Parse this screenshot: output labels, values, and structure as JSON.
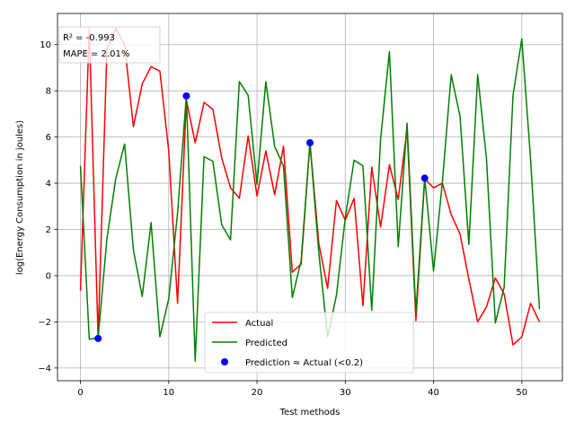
{
  "chart_data": {
    "type": "line",
    "title": "",
    "xlabel": "Test methods",
    "ylabel": "log(Energy Consumption in joules)",
    "xlim": [
      -2.6,
      54.6
    ],
    "ylim": [
      -4.55,
      11.35
    ],
    "x_ticks": [
      0,
      10,
      20,
      30,
      40,
      50
    ],
    "y_ticks": [
      -4,
      -2,
      0,
      2,
      4,
      6,
      8,
      10
    ],
    "grid": true,
    "legend_position": "bottom-center",
    "annotation": {
      "line1": "R² = -0.993",
      "line2": "MAPE = 2.01%"
    },
    "series": [
      {
        "name": "Actual",
        "color": "#ff0000",
        "values": [
          -0.65,
          10.7,
          -2.7,
          9.8,
          10.7,
          10.0,
          6.45,
          8.3,
          9.05,
          8.85,
          5.4,
          -1.2,
          7.6,
          5.75,
          7.5,
          7.2,
          5.1,
          3.8,
          3.35,
          6.05,
          3.45,
          5.4,
          3.5,
          5.6,
          0.15,
          0.5,
          5.75,
          1.4,
          -0.55,
          3.25,
          2.4,
          3.35,
          -1.3,
          4.7,
          2.1,
          4.8,
          3.3,
          6.35,
          -1.95,
          4.2,
          3.8,
          4.0,
          2.65,
          1.8,
          -0.15,
          -2.0,
          -1.35,
          -0.1,
          -0.8,
          -3.0,
          -2.65,
          -1.2,
          -2.0
        ]
      },
      {
        "name": "Predicted",
        "color": "#008000",
        "values": [
          4.75,
          -2.75,
          -2.7,
          1.6,
          4.2,
          5.7,
          1.1,
          -0.9,
          2.3,
          -2.65,
          -1.0,
          2.7,
          7.8,
          -3.7,
          5.15,
          4.95,
          2.2,
          1.55,
          8.4,
          7.8,
          3.95,
          8.4,
          5.6,
          4.75,
          -0.95,
          0.65,
          5.75,
          1.0,
          -2.65,
          -0.85,
          2.5,
          5.0,
          4.75,
          -1.5,
          5.9,
          9.7,
          1.25,
          6.6,
          -1.6,
          4.25,
          0.2,
          4.05,
          8.7,
          6.9,
          1.35,
          8.7,
          5.05,
          -2.05,
          -0.5,
          7.8,
          10.25,
          5.0,
          -1.45
        ]
      }
    ],
    "matches": {
      "name": "Prediction ≈ Actual (<0.2)",
      "color": "#0000ff",
      "points": [
        {
          "x": 2,
          "y": -2.72
        },
        {
          "x": 12,
          "y": 7.78
        },
        {
          "x": 26,
          "y": 5.75
        },
        {
          "x": 39,
          "y": 4.22
        }
      ]
    }
  }
}
